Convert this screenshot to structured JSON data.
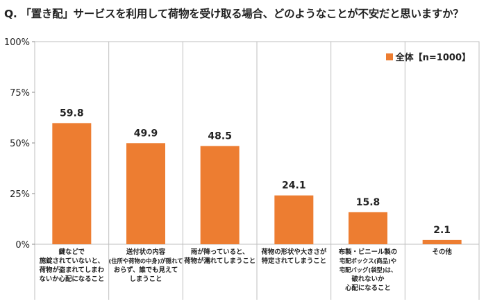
{
  "title": "Q. 「置き配」サービスを利用して荷物を受け取る場合、どのようなことが不安だと思いますか？",
  "colors": {
    "bar": "#ED7D31",
    "grid": "#bfbfbf"
  },
  "chart_data": {
    "type": "bar",
    "title": "Q. 「置き配」サービスを利用して荷物を受け取る場合、どのようなことが不安だと思いますか？",
    "categories": [
      [
        "鍵などで",
        "施錠されていないと、",
        "荷物が盗まれてしまわ",
        "ないか心配になること"
      ],
      [
        "送付状の内容",
        "(住所や荷物の中身)が隠れて",
        "おらず、誰でも見えて",
        "しまうこと"
      ],
      [
        "雨が降っていると、",
        "荷物が濡れてしまうこと"
      ],
      [
        "荷物の形状や大きさが",
        "特定されてしまうこと"
      ],
      [
        "布製・ビニール製の",
        "宅配ボックス(商品)や",
        "宅配バッグ(袋型)は、",
        "破れないか",
        "心配になること"
      ],
      [
        "その他"
      ]
    ],
    "series": [
      {
        "name": "全体【n=1000】",
        "values": [
          59.8,
          49.9,
          48.5,
          24.1,
          15.8,
          2.1
        ]
      }
    ],
    "value_labels": [
      "59.8",
      "49.9",
      "48.5",
      "24.1",
      "15.8",
      "2.1"
    ],
    "ylim": [
      0,
      100
    ],
    "yticks": [
      0,
      25,
      50,
      75,
      100
    ],
    "ytick_labels": [
      "0%",
      "25%",
      "50%",
      "75%",
      "100%"
    ],
    "grid": "vertical category separators",
    "legend_position": "top-right"
  }
}
